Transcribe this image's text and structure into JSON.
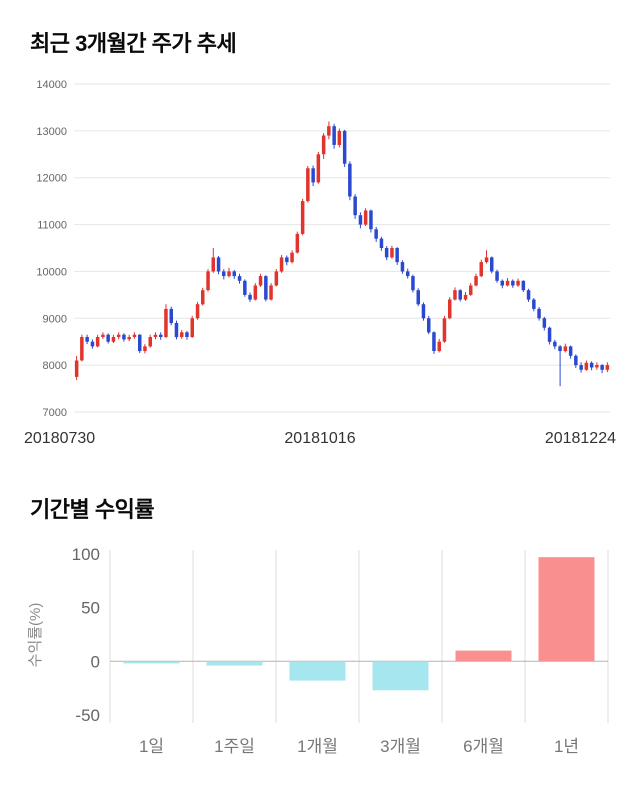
{
  "chart_data": [
    {
      "id": "price_trend",
      "type": "candlestick",
      "title": "최근 3개월간 주가 추세",
      "y_ticks": [
        7000,
        8000,
        9000,
        10000,
        11000,
        12000,
        13000,
        14000
      ],
      "y_min": 7000,
      "y_max": 14000,
      "x_labels": [
        "20180730",
        "20181016",
        "20181224"
      ],
      "up_color": "#e0342c",
      "down_color": "#2b49d0",
      "grid_color": "#e6e6e6",
      "tick_color": "#666666",
      "candles": [
        [
          7750,
          8200,
          7680,
          8100
        ],
        [
          8100,
          8650,
          8080,
          8600
        ],
        [
          8600,
          8650,
          8450,
          8500
        ],
        [
          8500,
          8550,
          8350,
          8400
        ],
        [
          8400,
          8650,
          8380,
          8600
        ],
        [
          8600,
          8700,
          8560,
          8650
        ],
        [
          8650,
          8680,
          8460,
          8500
        ],
        [
          8500,
          8650,
          8470,
          8600
        ],
        [
          8600,
          8700,
          8550,
          8650
        ],
        [
          8650,
          8680,
          8500,
          8550
        ],
        [
          8550,
          8650,
          8510,
          8600
        ],
        [
          8600,
          8700,
          8560,
          8650
        ],
        [
          8650,
          8660,
          8260,
          8300
        ],
        [
          8300,
          8450,
          8250,
          8400
        ],
        [
          8400,
          8650,
          8370,
          8600
        ],
        [
          8600,
          8700,
          8550,
          8650
        ],
        [
          8650,
          8700,
          8540,
          8600
        ],
        [
          8600,
          9300,
          8580,
          9200
        ],
        [
          9200,
          9250,
          8850,
          8900
        ],
        [
          8900,
          8950,
          8550,
          8600
        ],
        [
          8600,
          8750,
          8560,
          8700
        ],
        [
          8700,
          8730,
          8540,
          8600
        ],
        [
          8600,
          9050,
          8580,
          9000
        ],
        [
          9000,
          9350,
          8970,
          9300
        ],
        [
          9300,
          9650,
          9270,
          9600
        ],
        [
          9600,
          10050,
          9570,
          10000
        ],
        [
          10000,
          10500,
          9970,
          10300
        ],
        [
          10300,
          10330,
          9940,
          10000
        ],
        [
          10000,
          10050,
          9830,
          9900
        ],
        [
          9900,
          10080,
          9870,
          10000
        ],
        [
          10000,
          10030,
          9840,
          9900
        ],
        [
          9900,
          9950,
          9740,
          9800
        ],
        [
          9800,
          9830,
          9460,
          9500
        ],
        [
          9500,
          9550,
          9350,
          9400
        ],
        [
          9400,
          9750,
          9380,
          9700
        ],
        [
          9700,
          9950,
          9670,
          9900
        ],
        [
          9900,
          9920,
          9360,
          9400
        ],
        [
          9400,
          9750,
          9380,
          9700
        ],
        [
          9700,
          10050,
          9680,
          10000
        ],
        [
          10000,
          10350,
          9970,
          10300
        ],
        [
          10300,
          10340,
          10130,
          10200
        ],
        [
          10200,
          10450,
          10170,
          10400
        ],
        [
          10400,
          10850,
          10380,
          10800
        ],
        [
          10800,
          11550,
          10770,
          11500
        ],
        [
          11500,
          12250,
          11470,
          12200
        ],
        [
          12200,
          12260,
          11820,
          11900
        ],
        [
          11900,
          12550,
          11870,
          12500
        ],
        [
          12500,
          12950,
          12400,
          12900
        ],
        [
          12900,
          13200,
          12820,
          13100
        ],
        [
          13100,
          13150,
          12620,
          12700
        ],
        [
          12700,
          13050,
          12650,
          13000
        ],
        [
          13000,
          13020,
          12230,
          12300
        ],
        [
          12300,
          12350,
          11520,
          11600
        ],
        [
          11600,
          11650,
          11120,
          11200
        ],
        [
          11200,
          11260,
          10920,
          11000
        ],
        [
          11000,
          11350,
          10970,
          11300
        ],
        [
          11300,
          11320,
          10830,
          10900
        ],
        [
          10900,
          10950,
          10630,
          10700
        ],
        [
          10700,
          10740,
          10440,
          10500
        ],
        [
          10500,
          10540,
          10240,
          10300
        ],
        [
          10300,
          10550,
          10270,
          10500
        ],
        [
          10500,
          10520,
          10140,
          10200
        ],
        [
          10200,
          10240,
          9950,
          10000
        ],
        [
          10000,
          10060,
          9850,
          9900
        ],
        [
          9900,
          9930,
          9550,
          9600
        ],
        [
          9600,
          9640,
          9260,
          9300
        ],
        [
          9300,
          9340,
          8950,
          9000
        ],
        [
          9000,
          9050,
          8660,
          8700
        ],
        [
          8700,
          8720,
          8240,
          8300
        ],
        [
          8300,
          8560,
          8270,
          8500
        ],
        [
          8500,
          9050,
          8480,
          9000
        ],
        [
          9000,
          9450,
          8980,
          9400
        ],
        [
          9400,
          9660,
          9380,
          9600
        ],
        [
          9600,
          9620,
          9360,
          9400
        ],
        [
          9400,
          9560,
          9370,
          9500
        ],
        [
          9500,
          9750,
          9480,
          9700
        ],
        [
          9700,
          9950,
          9680,
          9900
        ],
        [
          9900,
          10250,
          9880,
          10200
        ],
        [
          10200,
          10450,
          10170,
          10300
        ],
        [
          10300,
          10320,
          9960,
          10000
        ],
        [
          10000,
          10040,
          9760,
          9800
        ],
        [
          9800,
          9830,
          9640,
          9700
        ],
        [
          9700,
          9860,
          9680,
          9800
        ],
        [
          9800,
          9830,
          9650,
          9700
        ],
        [
          9700,
          9850,
          9670,
          9800
        ],
        [
          9800,
          9810,
          9560,
          9600
        ],
        [
          9600,
          9630,
          9350,
          9400
        ],
        [
          9400,
          9430,
          9150,
          9200
        ],
        [
          9200,
          9240,
          8950,
          9000
        ],
        [
          9000,
          9030,
          8740,
          8800
        ],
        [
          8800,
          8820,
          8440,
          8500
        ],
        [
          8500,
          8540,
          8340,
          8400
        ],
        [
          8400,
          8430,
          7550,
          8300
        ],
        [
          8300,
          8460,
          8270,
          8400
        ],
        [
          8400,
          8420,
          8140,
          8200
        ],
        [
          8200,
          8230,
          7940,
          8000
        ],
        [
          8000,
          8060,
          7840,
          7900
        ],
        [
          7900,
          8100,
          7880,
          8050
        ],
        [
          8050,
          8080,
          7890,
          7950
        ],
        [
          7950,
          8060,
          7900,
          8000
        ],
        [
          8000,
          8020,
          7830,
          7900
        ],
        [
          7900,
          8060,
          7850,
          8000
        ]
      ]
    },
    {
      "id": "period_returns",
      "type": "bar",
      "title": "기간별 수익률",
      "ylabel": "수익률(%)",
      "y_ticks": [
        100,
        50,
        0,
        -50
      ],
      "y_min": -50,
      "y_max": 100,
      "categories": [
        "1일",
        "1주일",
        "1개월",
        "3개월",
        "6개월",
        "1년"
      ],
      "values": [
        -2,
        -4,
        -18,
        -27,
        10,
        97
      ],
      "positive_color": "#f98f8f",
      "negative_color": "#a5e6ef",
      "grid_color": "#dddddd",
      "zero_line_color": "#b3b3b3",
      "tick_color": "#666666",
      "category_color": "#777777",
      "ylabel_color": "#8a8a8a"
    }
  ]
}
